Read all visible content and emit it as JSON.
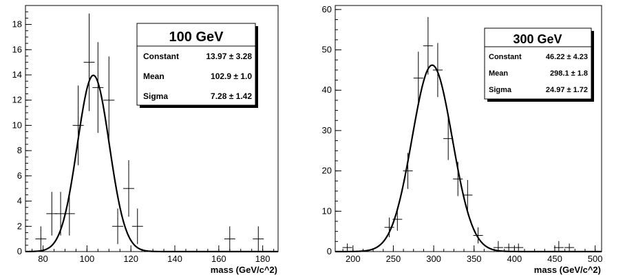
{
  "chart_data": [
    {
      "type": "scatter",
      "xlabel": "mass (GeV/c^2)",
      "ylabel": "",
      "xlim": [
        72,
        187
      ],
      "ylim": [
        0,
        19.5
      ],
      "xticks": [
        80,
        100,
        120,
        140,
        160,
        180
      ],
      "yticks": [
        0,
        2,
        4,
        6,
        8,
        10,
        12,
        14,
        16,
        18
      ],
      "points": [
        {
          "x": 79,
          "y": 1,
          "xerr": 2.5,
          "yerr": 1
        },
        {
          "x": 84,
          "y": 3,
          "xerr": 2.5,
          "yerr": 1.73
        },
        {
          "x": 88,
          "y": 3,
          "xerr": 2.5,
          "yerr": 1.73
        },
        {
          "x": 92,
          "y": 3,
          "xerr": 2.5,
          "yerr": 1.73
        },
        {
          "x": 96,
          "y": 10,
          "xerr": 2.5,
          "yerr": 3.16
        },
        {
          "x": 101,
          "y": 15,
          "xerr": 2.5,
          "yerr": 3.87
        },
        {
          "x": 105,
          "y": 13,
          "xerr": 2.5,
          "yerr": 3.6
        },
        {
          "x": 110,
          "y": 12,
          "xerr": 2.5,
          "yerr": 3.46
        },
        {
          "x": 114,
          "y": 2,
          "xerr": 2.5,
          "yerr": 1.41
        },
        {
          "x": 119,
          "y": 5,
          "xerr": 2.5,
          "yerr": 2.24
        },
        {
          "x": 123,
          "y": 2,
          "xerr": 2.5,
          "yerr": 1.41
        },
        {
          "x": 165,
          "y": 1,
          "xerr": 2.5,
          "yerr": 1
        },
        {
          "x": 178,
          "y": 1,
          "xerr": 2.5,
          "yerr": 1
        }
      ],
      "fit": {
        "type": "gaussian",
        "constant": 13.97,
        "mean": 102.9,
        "sigma": 7.28
      },
      "stats": {
        "title": "100 GeV",
        "rows": [
          {
            "label": "Constant",
            "value": "13.97 ± 3.28"
          },
          {
            "label": "Mean",
            "value": "102.9 ± 1.0"
          },
          {
            "label": "Sigma",
            "value": "7.28 ± 1.42"
          }
        ]
      }
    },
    {
      "type": "scatter",
      "xlabel": "mass (GeV/c^2)",
      "ylabel": "",
      "xlim": [
        178,
        508
      ],
      "ylim": [
        0,
        61
      ],
      "xticks": [
        200,
        250,
        300,
        350,
        400,
        450,
        500
      ],
      "yticks": [
        0,
        10,
        20,
        30,
        40,
        50,
        60
      ],
      "points": [
        {
          "x": 193,
          "y": 1,
          "xerr": 6,
          "yerr": 1
        },
        {
          "x": 245,
          "y": 6,
          "xerr": 6,
          "yerr": 2.45
        },
        {
          "x": 255,
          "y": 8,
          "xerr": 6,
          "yerr": 2.83
        },
        {
          "x": 268,
          "y": 20,
          "xerr": 6,
          "yerr": 4.47
        },
        {
          "x": 281,
          "y": 43,
          "xerr": 6,
          "yerr": 6.56
        },
        {
          "x": 293,
          "y": 51,
          "xerr": 6,
          "yerr": 7.14
        },
        {
          "x": 305,
          "y": 45,
          "xerr": 6,
          "yerr": 6.7
        },
        {
          "x": 318,
          "y": 28,
          "xerr": 6,
          "yerr": 5.29
        },
        {
          "x": 330,
          "y": 18,
          "xerr": 6,
          "yerr": 4.24
        },
        {
          "x": 342,
          "y": 14,
          "xerr": 6,
          "yerr": 3.74
        },
        {
          "x": 355,
          "y": 4,
          "xerr": 6,
          "yerr": 2
        },
        {
          "x": 380,
          "y": 1,
          "xerr": 6,
          "yerr": 1.6
        },
        {
          "x": 393,
          "y": 1,
          "xerr": 6,
          "yerr": 1
        },
        {
          "x": 405,
          "y": 1,
          "xerr": 6,
          "yerr": 1
        },
        {
          "x": 455,
          "y": 1,
          "xerr": 6,
          "yerr": 1.6
        },
        {
          "x": 468,
          "y": 1,
          "xerr": 6,
          "yerr": 1
        }
      ],
      "fit": {
        "type": "gaussian",
        "constant": 46.22,
        "mean": 298.1,
        "sigma": 24.97
      },
      "stats": {
        "title": "300 GeV",
        "rows": [
          {
            "label": "Constant",
            "value": "46.22 ± 4.23"
          },
          {
            "label": "Mean",
            "value": "298.1 ± 1.8"
          },
          {
            "label": "Sigma",
            "value": "24.97 ± 1.72"
          }
        ]
      }
    }
  ]
}
